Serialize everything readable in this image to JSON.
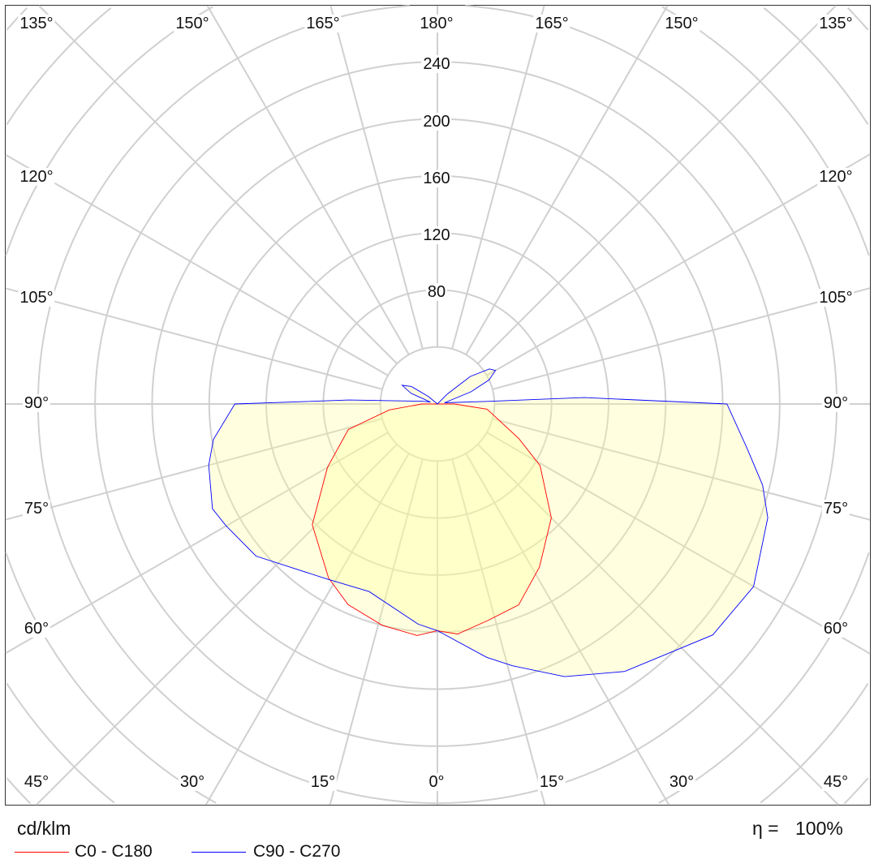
{
  "chart_data": {
    "type": "polar",
    "unit_label": "cd/klm",
    "efficiency_label": "η =",
    "efficiency_value": "100%",
    "radial_ticks": [
      80,
      120,
      160,
      200,
      240
    ],
    "radial_step": 40,
    "angle_step_deg": 15,
    "grid": true,
    "fill_color": "#ffff99",
    "grid_color": "#d0d0d0",
    "angle_labels": {
      "top": [
        "135°",
        "150°",
        "165°",
        "180°",
        "165°",
        "150°",
        "135°"
      ],
      "left": [
        "120°",
        "105°",
        "90°",
        "75°",
        "60°"
      ],
      "right": [
        "120°",
        "105°",
        "90°",
        "75°",
        "60°"
      ],
      "bottom": [
        "45°",
        "30°",
        "15°",
        "0°",
        "15°",
        "30°",
        "45°"
      ]
    },
    "series": [
      {
        "name": "C0 - C180",
        "color": "#ff0000",
        "right_half": [
          [
            0,
            159
          ],
          [
            5,
            162
          ],
          [
            13,
            156
          ],
          [
            22,
            152
          ],
          [
            32,
            135
          ],
          [
            45,
            113
          ],
          [
            59,
            84
          ],
          [
            67,
            62
          ],
          [
            84,
            35
          ],
          [
            90,
            12
          ],
          [
            180,
            0
          ]
        ],
        "left_half": [
          [
            0,
            159
          ],
          [
            5,
            163
          ],
          [
            14,
            160
          ],
          [
            24,
            154
          ],
          [
            32,
            144
          ],
          [
            46,
            122
          ],
          [
            60,
            89
          ],
          [
            74,
            65
          ],
          [
            83,
            34
          ],
          [
            90,
            11
          ],
          [
            180,
            0
          ]
        ]
      },
      {
        "name": "C90 - C270",
        "color": "#0000ff",
        "right_half": [
          [
            0,
            159
          ],
          [
            11,
            181
          ],
          [
            16,
            191
          ],
          [
            25,
            211
          ],
          [
            35,
            229
          ],
          [
            50,
            252
          ],
          [
            60,
            256
          ],
          [
            71,
            245
          ],
          [
            76,
            235
          ],
          [
            82,
            219
          ],
          [
            90,
            203
          ],
          [
            92.5,
            103
          ],
          [
            93,
            35
          ],
          [
            100,
            5
          ],
          [
            110,
            25
          ],
          [
            115,
            40
          ],
          [
            120,
            47
          ],
          [
            124,
            44
          ],
          [
            130,
            30
          ],
          [
            135,
            10
          ],
          [
            140,
            0
          ],
          [
            180,
            0
          ]
        ],
        "left_half": [
          [
            0,
            159
          ],
          [
            5,
            155
          ],
          [
            20,
            140
          ],
          [
            32,
            145
          ],
          [
            50,
            166
          ],
          [
            60,
            171
          ],
          [
            65,
            174
          ],
          [
            75,
            166
          ],
          [
            81,
            159
          ],
          [
            90,
            142
          ],
          [
            92.6,
            62
          ],
          [
            100,
            11
          ],
          [
            105,
            5
          ],
          [
            112,
            20
          ],
          [
            118,
            28
          ],
          [
            124,
            22
          ],
          [
            130,
            8
          ],
          [
            135,
            0
          ],
          [
            180,
            0
          ]
        ]
      }
    ]
  }
}
